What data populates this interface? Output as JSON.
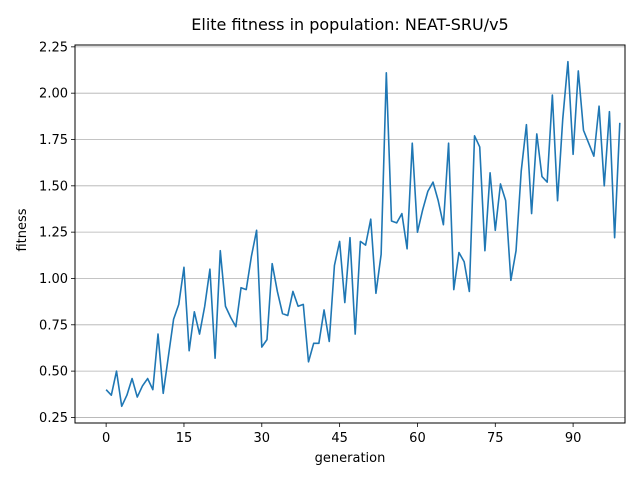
{
  "chart_data": {
    "type": "line",
    "title": "Elite fitness in population: NEAT-SRU/v5",
    "xlabel": "generation",
    "ylabel": "fitness",
    "xlim": [
      -6,
      100
    ],
    "ylim": [
      0.22,
      2.26
    ],
    "xticks": [
      0,
      15,
      30,
      45,
      60,
      75,
      90
    ],
    "yticks": [
      0.25,
      0.5,
      0.75,
      1.0,
      1.25,
      1.5,
      1.75,
      2.0,
      2.25
    ],
    "ytick_labels": [
      "0.25",
      "0.50",
      "0.75",
      "1.00",
      "1.25",
      "1.50",
      "1.75",
      "2.00",
      "2.25"
    ],
    "grid": "horizontal",
    "legend": "none",
    "series": [
      {
        "color": "#1f77b4",
        "x": [
          0,
          1,
          2,
          3,
          4,
          5,
          6,
          7,
          8,
          9,
          10,
          11,
          12,
          13,
          14,
          15,
          16,
          17,
          18,
          19,
          20,
          21,
          22,
          23,
          24,
          25,
          26,
          27,
          28,
          29,
          30,
          31,
          32,
          33,
          34,
          35,
          36,
          37,
          38,
          39,
          40,
          41,
          42,
          43,
          44,
          45,
          46,
          47,
          48,
          49,
          50,
          51,
          52,
          53,
          54,
          55,
          56,
          57,
          58,
          59,
          60,
          61,
          62,
          63,
          64,
          65,
          66,
          67,
          68,
          69,
          70,
          71,
          72,
          73,
          74,
          75,
          76,
          77,
          78,
          79,
          80,
          81,
          82,
          83,
          84,
          85,
          86,
          87,
          88,
          89,
          90,
          91,
          92,
          93,
          94,
          95,
          96,
          97,
          98,
          99
        ],
        "values": [
          0.4,
          0.37,
          0.5,
          0.31,
          0.37,
          0.46,
          0.36,
          0.42,
          0.46,
          0.4,
          0.7,
          0.38,
          0.58,
          0.78,
          0.86,
          1.06,
          0.61,
          0.82,
          0.7,
          0.85,
          1.05,
          0.57,
          1.15,
          0.85,
          0.79,
          0.74,
          0.95,
          0.94,
          1.12,
          1.26,
          0.63,
          0.67,
          1.08,
          0.93,
          0.81,
          0.8,
          0.93,
          0.85,
          0.86,
          0.55,
          0.65,
          0.65,
          0.83,
          0.66,
          1.07,
          1.2,
          0.87,
          1.22,
          0.7,
          1.2,
          1.18,
          1.32,
          0.92,
          1.13,
          2.11,
          1.31,
          1.3,
          1.35,
          1.16,
          1.73,
          1.25,
          1.37,
          1.47,
          1.52,
          1.42,
          1.29,
          1.73,
          0.94,
          1.14,
          1.09,
          0.93,
          1.77,
          1.71,
          1.15,
          1.57,
          1.26,
          1.51,
          1.42,
          0.99,
          1.15,
          1.58,
          1.83,
          1.35,
          1.78,
          1.55,
          1.52,
          1.99,
          1.42,
          1.86,
          2.17,
          1.67,
          2.12,
          1.8,
          1.73,
          1.66,
          1.93,
          1.5,
          1.9,
          1.22,
          1.84
        ]
      }
    ]
  }
}
